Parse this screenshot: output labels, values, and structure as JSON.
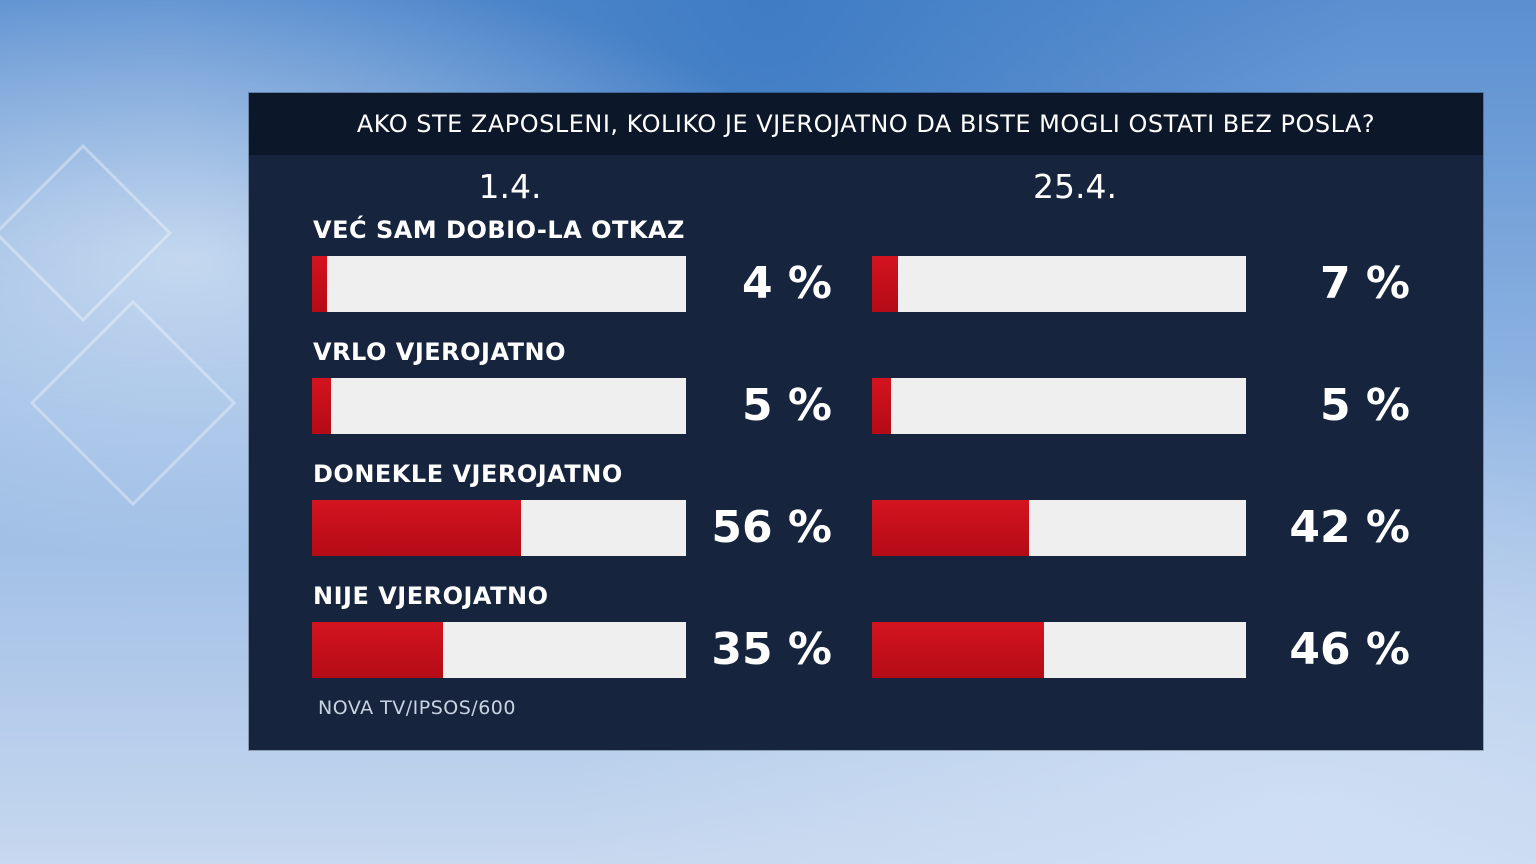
{
  "chart_data": {
    "type": "bar",
    "title": "AKO STE ZAPOSLENI, KOLIKO JE VJEROJATNO DA BISTE MOGLI OSTATI BEZ POSLA?",
    "categories": [
      "VEĆ SAM DOBIO-LA OTKAZ",
      "VRLO VJEROJATNO",
      "DONEKLE VJEROJATNO",
      "NIJE VJEROJATNO"
    ],
    "series": [
      {
        "name": "1.4.",
        "values": [
          4,
          5,
          56,
          35
        ],
        "labels": [
          "4 %",
          "5 %",
          "56 %",
          "35 %"
        ]
      },
      {
        "name": "25.4.",
        "values": [
          7,
          5,
          42,
          46
        ],
        "labels": [
          "7 %",
          "5 %",
          "42 %",
          "46 %"
        ]
      }
    ],
    "ylim": [
      0,
      100
    ],
    "orientation": "horizontal",
    "source": "NOVA TV/IPSOS/600"
  },
  "colors": {
    "bar_fill": "#c8101b",
    "bar_track": "#efefef",
    "panel": "#16253d",
    "title_bar": "#0c1729"
  }
}
